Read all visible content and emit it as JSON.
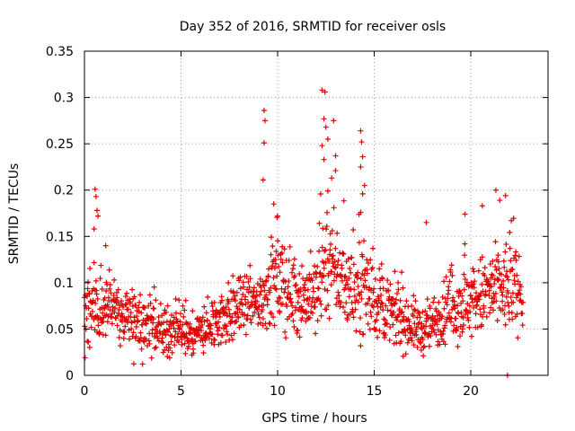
{
  "chart_data": {
    "type": "scatter",
    "title": "Day 352 of 2016, SRMTID for receiver osls",
    "xlabel": "GPS time / hours",
    "ylabel": "SRMTID / TECUs",
    "xlim": [
      0,
      24
    ],
    "ylim": [
      0,
      0.35
    ],
    "xticks": [
      0,
      5,
      10,
      15,
      20
    ],
    "xtick_labels": [
      "0",
      "5",
      "10",
      "15",
      "20"
    ],
    "yticks": [
      0,
      0.05,
      0.1,
      0.15,
      0.2,
      0.25,
      0.3,
      0.35
    ],
    "ytick_labels": [
      "0",
      "0.05",
      "0.1",
      "0.15",
      "0.2",
      "0.25",
      "0.3",
      "0.35"
    ],
    "grid": true,
    "marker": "+",
    "color": "#e00000",
    "series": [
      {
        "name": "SRMTID",
        "profile_note": "dense scatter, ~1 point per minute; envelope mean/spread by hour",
        "envelope": [
          {
            "t": 0.0,
            "mean": 0.065,
            "spread": 0.03
          },
          {
            "t": 0.5,
            "mean": 0.075,
            "spread": 0.04
          },
          {
            "t": 1.0,
            "mean": 0.072,
            "spread": 0.035
          },
          {
            "t": 2.0,
            "mean": 0.062,
            "spread": 0.03
          },
          {
            "t": 3.0,
            "mean": 0.055,
            "spread": 0.028
          },
          {
            "t": 4.0,
            "mean": 0.048,
            "spread": 0.022
          },
          {
            "t": 5.0,
            "mean": 0.046,
            "spread": 0.02
          },
          {
            "t": 6.0,
            "mean": 0.045,
            "spread": 0.02
          },
          {
            "t": 7.0,
            "mean": 0.062,
            "spread": 0.03
          },
          {
            "t": 8.0,
            "mean": 0.072,
            "spread": 0.03
          },
          {
            "t": 9.0,
            "mean": 0.078,
            "spread": 0.03
          },
          {
            "t": 9.5,
            "mean": 0.095,
            "spread": 0.04
          },
          {
            "t": 10.0,
            "mean": 0.1,
            "spread": 0.045
          },
          {
            "t": 11.0,
            "mean": 0.085,
            "spread": 0.035
          },
          {
            "t": 12.0,
            "mean": 0.085,
            "spread": 0.04
          },
          {
            "t": 12.5,
            "mean": 0.13,
            "spread": 0.06
          },
          {
            "t": 13.0,
            "mean": 0.11,
            "spread": 0.045
          },
          {
            "t": 14.0,
            "mean": 0.09,
            "spread": 0.04
          },
          {
            "t": 14.5,
            "mean": 0.1,
            "spread": 0.05
          },
          {
            "t": 15.0,
            "mean": 0.08,
            "spread": 0.035
          },
          {
            "t": 16.0,
            "mean": 0.065,
            "spread": 0.03
          },
          {
            "t": 17.0,
            "mean": 0.055,
            "spread": 0.025
          },
          {
            "t": 17.5,
            "mean": 0.048,
            "spread": 0.022
          },
          {
            "t": 18.0,
            "mean": 0.055,
            "spread": 0.025
          },
          {
            "t": 19.0,
            "mean": 0.075,
            "spread": 0.035
          },
          {
            "t": 20.0,
            "mean": 0.08,
            "spread": 0.035
          },
          {
            "t": 21.0,
            "mean": 0.09,
            "spread": 0.04
          },
          {
            "t": 22.0,
            "mean": 0.095,
            "spread": 0.045
          },
          {
            "t": 22.7,
            "mean": 0.09,
            "spread": 0.03
          }
        ],
        "t_start": 0.0,
        "t_end": 22.7,
        "sample_count": 1360,
        "outliers": [
          {
            "x": 0.55,
            "y": 0.201
          },
          {
            "x": 0.6,
            "y": 0.193
          },
          {
            "x": 0.65,
            "y": 0.178
          },
          {
            "x": 0.7,
            "y": 0.172
          },
          {
            "x": 0.5,
            "y": 0.158
          },
          {
            "x": 1.1,
            "y": 0.14
          },
          {
            "x": 9.3,
            "y": 0.286
          },
          {
            "x": 9.35,
            "y": 0.275
          },
          {
            "x": 9.3,
            "y": 0.251
          },
          {
            "x": 9.25,
            "y": 0.211
          },
          {
            "x": 9.8,
            "y": 0.185
          },
          {
            "x": 10.0,
            "y": 0.172
          },
          {
            "x": 12.3,
            "y": 0.308
          },
          {
            "x": 12.45,
            "y": 0.306
          },
          {
            "x": 12.4,
            "y": 0.277
          },
          {
            "x": 12.5,
            "y": 0.268
          },
          {
            "x": 12.9,
            "y": 0.275
          },
          {
            "x": 12.6,
            "y": 0.255
          },
          {
            "x": 12.3,
            "y": 0.248
          },
          {
            "x": 12.4,
            "y": 0.233
          },
          {
            "x": 13.0,
            "y": 0.237
          },
          {
            "x": 12.8,
            "y": 0.213
          },
          {
            "x": 12.6,
            "y": 0.199
          },
          {
            "x": 13.0,
            "y": 0.221
          },
          {
            "x": 14.3,
            "y": 0.264
          },
          {
            "x": 14.35,
            "y": 0.252
          },
          {
            "x": 14.4,
            "y": 0.236
          },
          {
            "x": 14.3,
            "y": 0.225
          },
          {
            "x": 14.5,
            "y": 0.205
          },
          {
            "x": 14.4,
            "y": 0.196
          },
          {
            "x": 14.3,
            "y": 0.176
          },
          {
            "x": 17.7,
            "y": 0.165
          },
          {
            "x": 19.7,
            "y": 0.174
          },
          {
            "x": 20.6,
            "y": 0.183
          },
          {
            "x": 21.3,
            "y": 0.2
          },
          {
            "x": 21.5,
            "y": 0.189
          },
          {
            "x": 21.8,
            "y": 0.194
          },
          {
            "x": 22.1,
            "y": 0.167
          },
          {
            "x": 21.9,
            "y": 0.0
          }
        ]
      }
    ]
  }
}
